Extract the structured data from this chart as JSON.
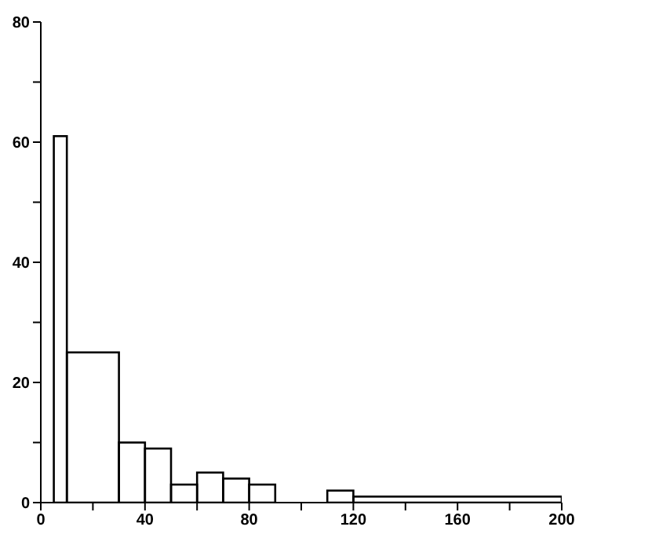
{
  "chart_data": {
    "type": "histogram",
    "bins": [
      5,
      10,
      30,
      40,
      50,
      60,
      70,
      80,
      90,
      110,
      120,
      200
    ],
    "values": [
      61,
      25,
      10,
      9,
      3,
      5,
      4,
      3,
      0,
      2,
      1
    ],
    "color": "#000000",
    "xlim": [
      0,
      200
    ],
    "xticks": [
      0,
      {
        "value": 20,
        "label": null
      },
      40,
      {
        "value": 60,
        "label": null
      },
      80,
      {
        "value": 100,
        "label": null
      },
      120,
      {
        "value": 140,
        "label": null
      },
      160,
      {
        "value": 180,
        "label": null
      },
      200
    ],
    "ylim": [
      0,
      80
    ],
    "yticks": [
      0,
      {
        "value": 10,
        "label": null
      },
      20,
      {
        "value": 30,
        "label": null
      },
      40,
      {
        "value": 50,
        "label": null
      },
      60,
      {
        "value": 70,
        "label": null
      },
      80
    ],
    "grid": false
  }
}
